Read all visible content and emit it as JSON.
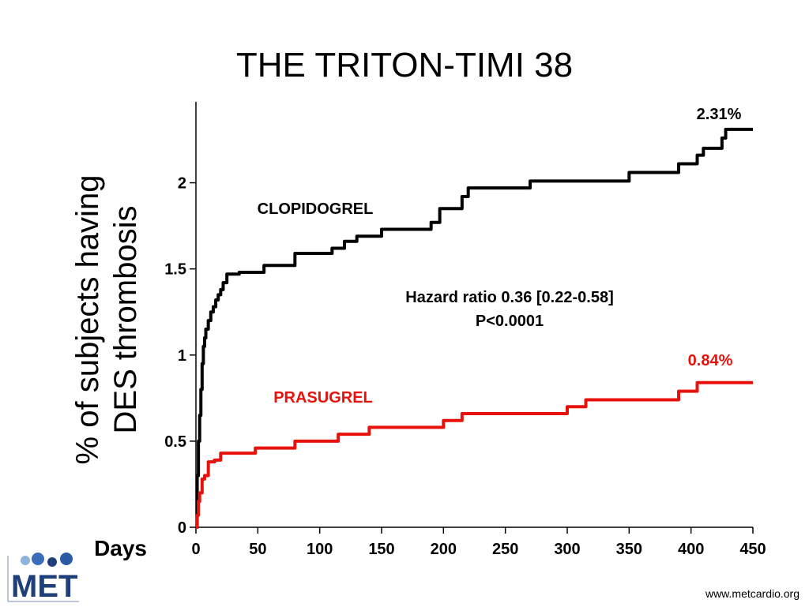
{
  "slide": {
    "title": "THE TRITON-TIMI 38",
    "website": "www.metcardio.org",
    "logo_text": "MET"
  },
  "chart_data": {
    "type": "line",
    "title": "",
    "xlabel": "Days",
    "ylabel_lines": [
      "% of subjects having",
      "DES thrombosis"
    ],
    "xlim": [
      0,
      450
    ],
    "ylim": [
      0,
      2.5
    ],
    "xticks": [
      0,
      50,
      100,
      150,
      200,
      250,
      300,
      350,
      400,
      450
    ],
    "yticks": [
      0,
      0.5,
      1,
      1.5,
      2
    ],
    "ytick_labels": [
      "0",
      "0.5",
      "1",
      "1.5",
      "2"
    ],
    "grid": false,
    "series": [
      {
        "name": "CLOPIDOGREL",
        "color": "#000000",
        "end_label": "2.31%",
        "x": [
          0,
          1,
          2,
          3,
          4,
          5,
          6,
          7,
          8,
          10,
          12,
          14,
          16,
          18,
          20,
          22,
          25,
          35,
          55,
          80,
          110,
          120,
          130,
          150,
          190,
          197,
          200,
          215,
          220,
          245,
          270,
          300,
          350,
          390,
          405,
          410,
          425,
          428,
          450
        ],
        "y": [
          0,
          0.3,
          0.5,
          0.65,
          0.8,
          0.95,
          1.05,
          1.1,
          1.15,
          1.2,
          1.25,
          1.28,
          1.32,
          1.35,
          1.38,
          1.42,
          1.47,
          1.48,
          1.52,
          1.59,
          1.62,
          1.66,
          1.69,
          1.73,
          1.77,
          1.85,
          1.85,
          1.92,
          1.97,
          1.97,
          2.01,
          2.01,
          2.06,
          2.11,
          2.16,
          2.2,
          2.26,
          2.31,
          2.31
        ]
      },
      {
        "name": "PRASUGREL",
        "color": "#e8120c",
        "end_label": "0.84%",
        "x": [
          0,
          1,
          2,
          3,
          5,
          7,
          10,
          15,
          20,
          30,
          48,
          80,
          115,
          140,
          175,
          190,
          200,
          215,
          250,
          300,
          315,
          350,
          390,
          405,
          450
        ],
        "y": [
          0,
          0.07,
          0.15,
          0.2,
          0.28,
          0.3,
          0.38,
          0.39,
          0.43,
          0.43,
          0.46,
          0.5,
          0.54,
          0.58,
          0.58,
          0.58,
          0.62,
          0.66,
          0.66,
          0.7,
          0.74,
          0.74,
          0.79,
          0.84,
          0.84
        ]
      }
    ],
    "annotations": {
      "hazard_ratio": "Hazard ratio 0.36 [0.22-0.58]",
      "p_value": "P<0.0001"
    }
  }
}
